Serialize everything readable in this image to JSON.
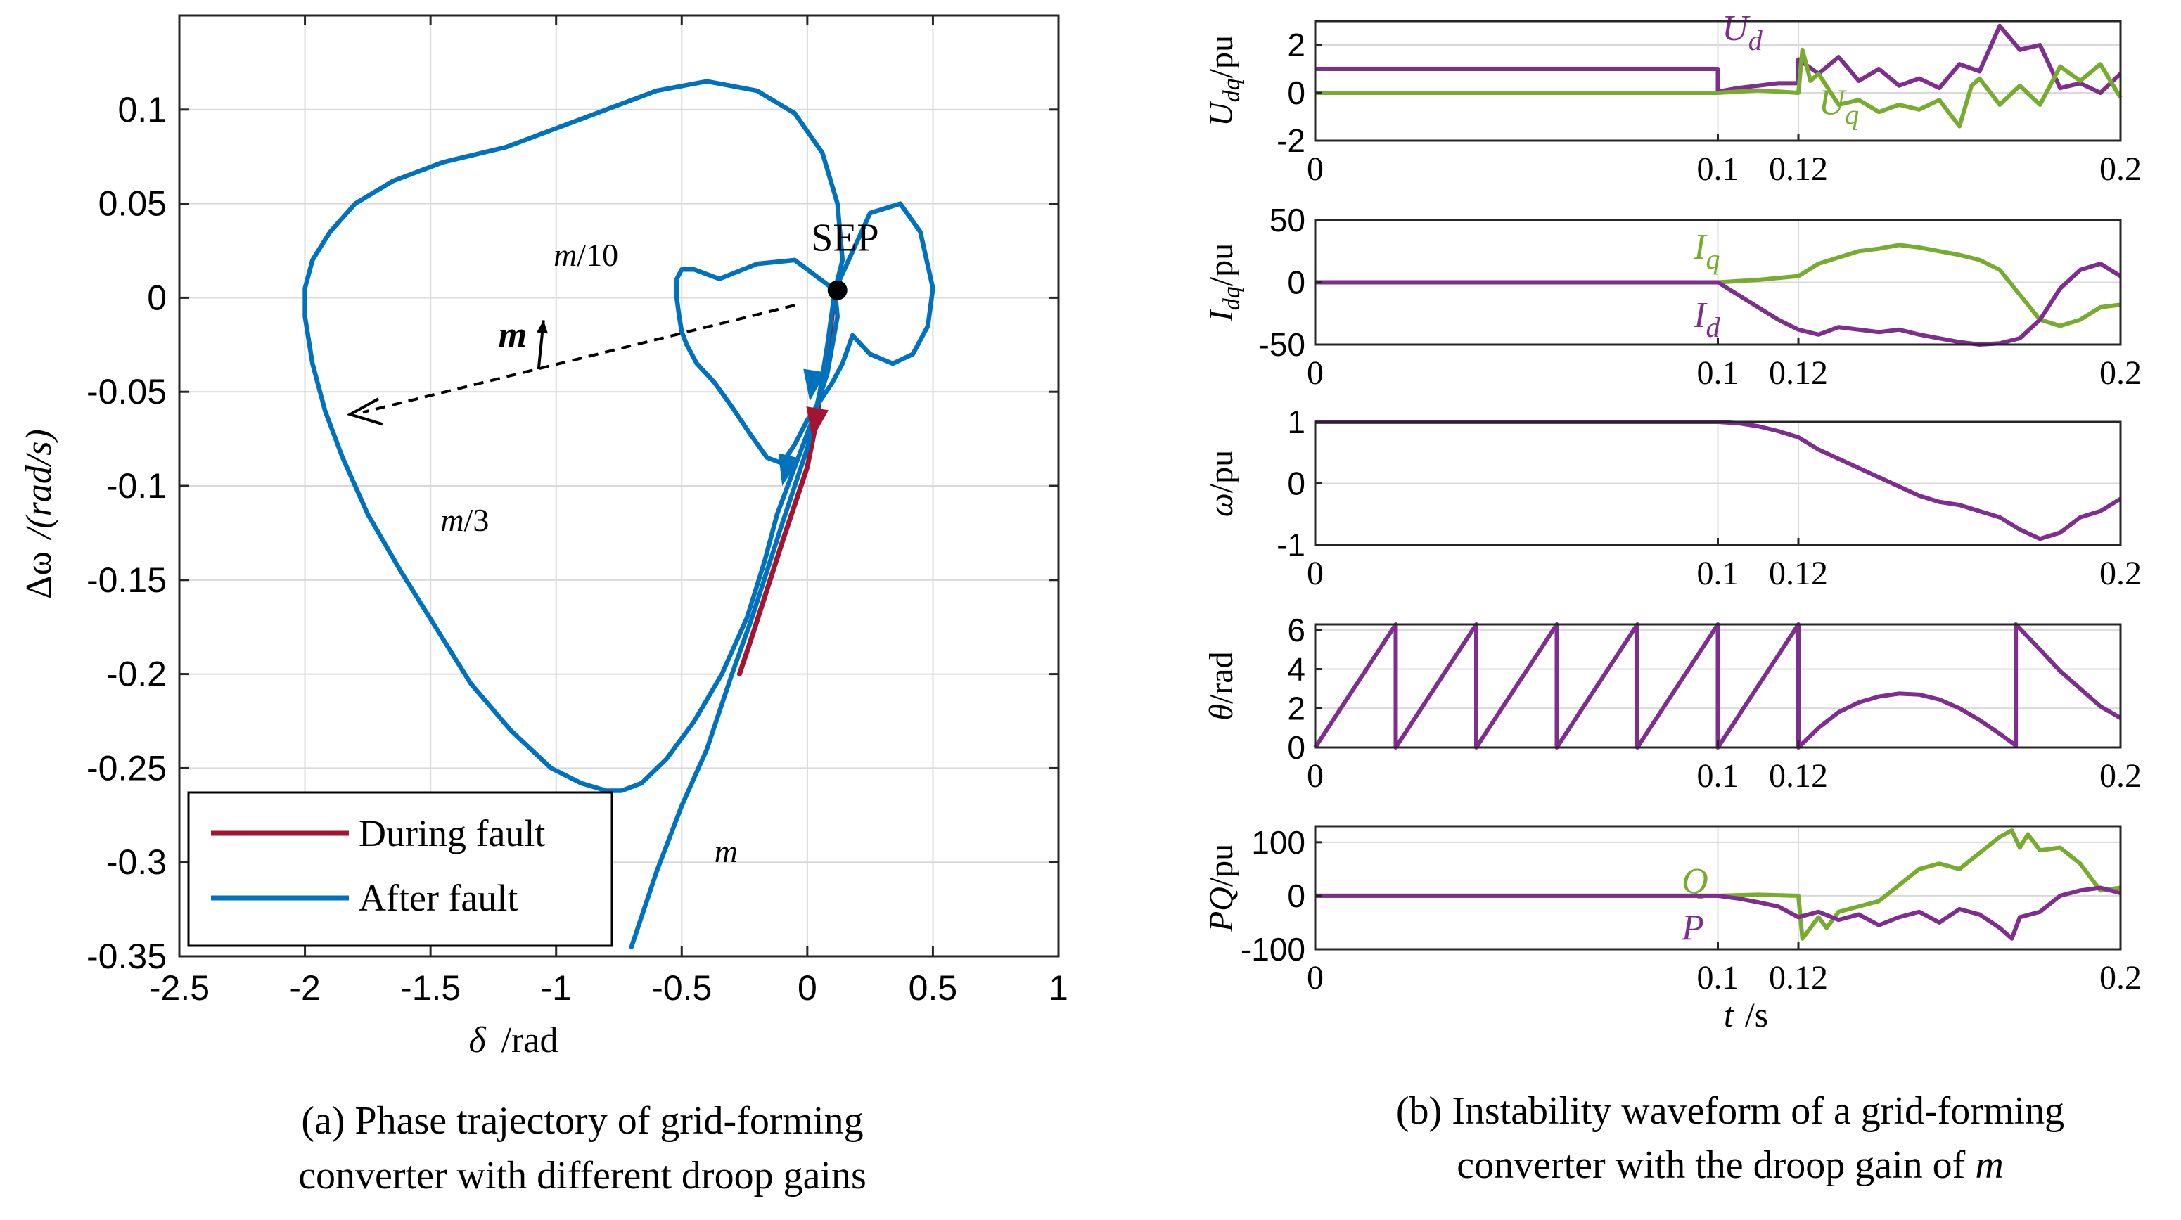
{
  "chart_data": [
    {
      "id": "phase",
      "type": "line",
      "xlabel_sym": "δ",
      "xlabel_unit": "/rad",
      "ylabel_sym": "Δω",
      "ylabel_unit": "/(rad/s)",
      "xlim": [
        -2.5,
        1
      ],
      "ylim": [
        -0.35,
        0.15
      ],
      "xticks": [
        -2.5,
        -2,
        -1.5,
        -1,
        -0.5,
        0,
        0.5,
        1
      ],
      "xtick_labels": [
        "-2.5",
        "-2",
        "-1.5",
        "-1",
        "-0.5",
        "0",
        "0.5",
        "1"
      ],
      "yticks": [
        -0.35,
        -0.3,
        -0.25,
        -0.2,
        -0.15,
        -0.1,
        -0.05,
        0,
        0.05,
        0.1
      ],
      "ytick_labels": [
        "-0.35",
        "-0.3",
        "-0.25",
        "-0.2",
        "-0.15",
        "-0.1",
        "-0.05",
        "0",
        "0.05",
        "0.1"
      ],
      "legend": [
        {
          "label": "During fault",
          "color": "#a2142f"
        },
        {
          "label": "After fault",
          "color": "#0072bd"
        }
      ],
      "legend_position": "bottom-left",
      "series": [
        {
          "name": "During fault",
          "color": "#a2142f",
          "x": [
            0.11,
            0.09,
            0.06,
            0.03,
            0.0,
            -0.05,
            -0.1,
            -0.16,
            -0.22,
            -0.27
          ],
          "y": [
            0.004,
            -0.02,
            -0.045,
            -0.07,
            -0.09,
            -0.11,
            -0.13,
            -0.155,
            -0.18,
            -0.2
          ]
        },
        {
          "name": "After fault (m)",
          "color": "#0072bd",
          "x": [
            0.11,
            0.08,
            0.05,
            0.0,
            -0.05,
            -0.1,
            -0.16,
            -0.22,
            -0.3,
            -0.4,
            -0.5,
            -0.6,
            -0.7
          ],
          "y": [
            0.004,
            -0.025,
            -0.05,
            -0.08,
            -0.1,
            -0.12,
            -0.145,
            -0.17,
            -0.2,
            -0.24,
            -0.27,
            -0.305,
            -0.345
          ]
        },
        {
          "name": "After fault (m/10)",
          "color": "#0072bd",
          "x": [
            0.11,
            0.25,
            0.37,
            0.45,
            0.5,
            0.48,
            0.42,
            0.34,
            0.25,
            0.18,
            0.14,
            0.1,
            0.05,
            0.0,
            -0.05,
            -0.1,
            -0.16,
            -0.23,
            -0.3,
            -0.37,
            -0.44,
            -0.48,
            -0.5,
            -0.51,
            -0.52,
            -0.52,
            -0.5,
            -0.45,
            -0.35,
            -0.2,
            -0.05,
            0.05,
            0.11,
            0.12,
            0.08,
            0.02,
            -0.05,
            -0.12
          ],
          "y": [
            0.004,
            0.045,
            0.05,
            0.035,
            0.005,
            -0.015,
            -0.03,
            -0.035,
            -0.03,
            -0.02,
            -0.035,
            -0.045,
            -0.055,
            -0.065,
            -0.078,
            -0.088,
            -0.085,
            -0.072,
            -0.058,
            -0.045,
            -0.035,
            -0.025,
            -0.018,
            -0.01,
            0.0,
            0.01,
            0.015,
            0.015,
            0.01,
            0.018,
            0.02,
            0.01,
            0.004,
            -0.01,
            -0.04,
            -0.065,
            -0.09,
            -0.115
          ]
        },
        {
          "name": "After fault (m/3)",
          "color": "#0072bd",
          "x": [
            0.11,
            0.14,
            0.12,
            0.06,
            -0.05,
            -0.2,
            -0.4,
            -0.6,
            -0.8,
            -1.0,
            -1.2,
            -1.45,
            -1.65,
            -1.8,
            -1.9,
            -1.97,
            -2.0,
            -2.0,
            -1.97,
            -1.92,
            -1.85,
            -1.75,
            -1.62,
            -1.48,
            -1.34,
            -1.18,
            -1.02,
            -0.9,
            -0.8,
            -0.74,
            -0.66,
            -0.56,
            -0.45,
            -0.34,
            -0.24,
            -0.17,
            -0.12
          ],
          "y": [
            0.004,
            0.02,
            0.05,
            0.077,
            0.098,
            0.11,
            0.115,
            0.11,
            0.1,
            0.09,
            0.08,
            0.072,
            0.062,
            0.05,
            0.035,
            0.02,
            0.005,
            -0.01,
            -0.035,
            -0.06,
            -0.085,
            -0.115,
            -0.145,
            -0.175,
            -0.205,
            -0.23,
            -0.25,
            -0.258,
            -0.262,
            -0.262,
            -0.258,
            -0.245,
            -0.225,
            -0.2,
            -0.17,
            -0.14,
            -0.115
          ]
        }
      ],
      "annotations": {
        "sep": "SEP",
        "m10": "m/10",
        "m3": "m/3",
        "m": "m",
        "m_arrow": "m",
        "sep_point": [
          0.12,
          0.004
        ],
        "arrow_start": [
          -0.05,
          -0.004
        ],
        "arrow_end": [
          -1.82,
          -0.062
        ]
      }
    },
    {
      "id": "udq",
      "type": "line",
      "ylabel_sym": "U",
      "ylabel_sub": "dq",
      "ylabel_unit": "/pu",
      "xlim": [
        0,
        0.2
      ],
      "ylim": [
        -2,
        3
      ],
      "xticks": [
        0,
        0.1,
        0.12,
        0.2
      ],
      "xtick_labels": [
        "0",
        "0.1",
        "0.12",
        "0.2"
      ],
      "yticks": [
        -2,
        0,
        2
      ],
      "ytick_labels": [
        "-2",
        "0",
        "2"
      ],
      "series": [
        {
          "name": "Ud",
          "label": "U",
          "sub": "d",
          "color": "#7e2f8e",
          "x": [
            0,
            0.1,
            0.1,
            0.105,
            0.11,
            0.115,
            0.12,
            0.12,
            0.125,
            0.13,
            0.135,
            0.14,
            0.145,
            0.15,
            0.155,
            0.16,
            0.165,
            0.17,
            0.175,
            0.18,
            0.185,
            0.19,
            0.195,
            0.2
          ],
          "y": [
            1,
            1,
            0.05,
            0.2,
            0.3,
            0.4,
            0.4,
            1.4,
            0.8,
            1.5,
            0.5,
            1.0,
            0.3,
            0.6,
            0.2,
            1.2,
            0.9,
            2.8,
            1.8,
            2.0,
            0.2,
            0.4,
            0.0,
            0.8
          ]
        },
        {
          "name": "Uq",
          "label": "U",
          "sub": "q",
          "color": "#77ac30",
          "x": [
            0,
            0.1,
            0.105,
            0.11,
            0.115,
            0.12,
            0.121,
            0.123,
            0.125,
            0.13,
            0.135,
            0.14,
            0.145,
            0.15,
            0.155,
            0.16,
            0.163,
            0.165,
            0.17,
            0.175,
            0.18,
            0.185,
            0.19,
            0.195,
            0.2
          ],
          "y": [
            0,
            0,
            0.05,
            0.1,
            0.05,
            0.0,
            1.8,
            0.5,
            0.8,
            -0.5,
            -0.3,
            -0.8,
            -0.5,
            -0.7,
            -0.3,
            -1.4,
            0.3,
            0.6,
            -0.5,
            0.3,
            -0.5,
            1.1,
            0.5,
            1.2,
            -0.2
          ]
        }
      ]
    },
    {
      "id": "idq",
      "type": "line",
      "ylabel_sym": "I",
      "ylabel_sub": "dq",
      "ylabel_unit": "/pu",
      "xlim": [
        0,
        0.2
      ],
      "ylim": [
        -50,
        50
      ],
      "xticks": [
        0,
        0.1,
        0.12,
        0.2
      ],
      "xtick_labels": [
        "0",
        "0.1",
        "0.12",
        "0.2"
      ],
      "yticks": [
        -50,
        0,
        50
      ],
      "ytick_labels": [
        "-50",
        "0",
        "50"
      ],
      "series": [
        {
          "name": "Iq",
          "label": "I",
          "sub": "q",
          "color": "#77ac30",
          "x": [
            0,
            0.1,
            0.11,
            0.12,
            0.125,
            0.13,
            0.135,
            0.14,
            0.145,
            0.15,
            0.155,
            0.16,
            0.165,
            0.17,
            0.175,
            0.18,
            0.185,
            0.19,
            0.195,
            0.2
          ],
          "y": [
            0,
            0,
            2,
            5,
            15,
            20,
            25,
            27,
            30,
            28,
            25,
            22,
            18,
            10,
            -10,
            -30,
            -35,
            -30,
            -20,
            -18
          ]
        },
        {
          "name": "Id",
          "label": "I",
          "sub": "d",
          "color": "#7e2f8e",
          "x": [
            0,
            0.1,
            0.105,
            0.11,
            0.115,
            0.12,
            0.125,
            0.13,
            0.135,
            0.14,
            0.145,
            0.15,
            0.155,
            0.16,
            0.165,
            0.17,
            0.175,
            0.18,
            0.185,
            0.19,
            0.195,
            0.2
          ],
          "y": [
            0,
            0,
            -10,
            -20,
            -30,
            -38,
            -42,
            -36,
            -38,
            -40,
            -38,
            -42,
            -45,
            -48,
            -50,
            -49,
            -45,
            -30,
            -5,
            10,
            15,
            5
          ]
        }
      ]
    },
    {
      "id": "omega",
      "type": "line",
      "ylabel_sym": "ω",
      "ylabel_unit": "/pu",
      "xlim": [
        0,
        0.2
      ],
      "ylim": [
        -1,
        1
      ],
      "xticks": [
        0,
        0.1,
        0.12,
        0.2
      ],
      "xtick_labels": [
        "0",
        "0.1",
        "0.12",
        "0.2"
      ],
      "yticks": [
        -1,
        0,
        1
      ],
      "ytick_labels": [
        "-1",
        "0",
        "1"
      ],
      "series": [
        {
          "name": "omega",
          "color": "#7e2f8e",
          "x": [
            0,
            0.1,
            0.105,
            0.11,
            0.115,
            0.12,
            0.125,
            0.13,
            0.135,
            0.14,
            0.145,
            0.15,
            0.155,
            0.16,
            0.165,
            0.17,
            0.175,
            0.18,
            0.185,
            0.19,
            0.195,
            0.2
          ],
          "y": [
            1,
            1,
            0.98,
            0.93,
            0.85,
            0.75,
            0.55,
            0.4,
            0.25,
            0.1,
            -0.05,
            -0.2,
            -0.3,
            -0.35,
            -0.45,
            -0.55,
            -0.75,
            -0.9,
            -0.8,
            -0.55,
            -0.45,
            -0.25
          ]
        }
      ]
    },
    {
      "id": "theta",
      "type": "line",
      "ylabel_sym": "θ",
      "ylabel_unit": "/rad",
      "xlim": [
        0,
        0.2
      ],
      "ylim": [
        0,
        6.28
      ],
      "xticks": [
        0,
        0.1,
        0.12,
        0.2
      ],
      "xtick_labels": [
        "0",
        "0.1",
        "0.12",
        "0.2"
      ],
      "yticks": [
        0,
        2,
        4,
        6
      ],
      "ytick_labels": [
        "0",
        "2",
        "4",
        "6"
      ],
      "series": [
        {
          "name": "theta",
          "color": "#7e2f8e",
          "x": [
            0,
            0.02,
            0.02,
            0.04,
            0.04,
            0.06,
            0.06,
            0.08,
            0.08,
            0.1,
            0.1,
            0.12,
            0.12,
            0.125,
            0.13,
            0.135,
            0.14,
            0.145,
            0.15,
            0.155,
            0.16,
            0.165,
            0.17,
            0.174,
            0.174,
            0.18,
            0.185,
            0.19,
            0.195,
            0.2
          ],
          "y": [
            0,
            6.28,
            0,
            6.28,
            0,
            6.28,
            0,
            6.28,
            0,
            6.28,
            0,
            6.28,
            0,
            1.0,
            1.8,
            2.3,
            2.6,
            2.75,
            2.7,
            2.45,
            2.0,
            1.4,
            0.7,
            0.1,
            6.28,
            5.0,
            3.9,
            3.0,
            2.1,
            1.5
          ]
        }
      ]
    },
    {
      "id": "pq",
      "type": "line",
      "ylabel_sym": "PQ",
      "ylabel_unit": "/pu",
      "xlabel_sym": "t",
      "xlabel_unit": "/s",
      "xlim": [
        0,
        0.2
      ],
      "ylim": [
        -100,
        130
      ],
      "xticks": [
        0,
        0.1,
        0.12,
        0.2
      ],
      "xtick_labels": [
        "0",
        "0.1",
        "0.12",
        "0.2"
      ],
      "yticks": [
        -100,
        0,
        100
      ],
      "ytick_labels": [
        "-100",
        "0",
        "100"
      ],
      "series": [
        {
          "name": "Q",
          "label": "Q",
          "color": "#77ac30",
          "x": [
            0,
            0.1,
            0.11,
            0.12,
            0.12,
            0.121,
            0.123,
            0.125,
            0.127,
            0.13,
            0.135,
            0.14,
            0.145,
            0.15,
            0.155,
            0.16,
            0.165,
            0.17,
            0.173,
            0.175,
            0.177,
            0.18,
            0.185,
            0.19,
            0.195,
            0.2
          ],
          "y": [
            0,
            0,
            2,
            0,
            0,
            -80,
            -60,
            -40,
            -60,
            -30,
            -20,
            -10,
            20,
            50,
            60,
            50,
            80,
            110,
            122,
            90,
            115,
            85,
            90,
            60,
            10,
            15
          ]
        },
        {
          "name": "P",
          "label": "P",
          "color": "#7e2f8e",
          "x": [
            0,
            0.1,
            0.105,
            0.11,
            0.115,
            0.12,
            0.125,
            0.13,
            0.135,
            0.14,
            0.145,
            0.15,
            0.155,
            0.16,
            0.165,
            0.17,
            0.173,
            0.175,
            0.18,
            0.185,
            0.19,
            0.195,
            0.2
          ],
          "y": [
            0,
            0,
            -5,
            -12,
            -20,
            -40,
            -30,
            -45,
            -35,
            -55,
            -40,
            -30,
            -50,
            -25,
            -35,
            -60,
            -80,
            -40,
            -30,
            0,
            10,
            15,
            5
          ]
        }
      ]
    }
  ],
  "captions": {
    "a_line1": "(a) Phase trajectory of grid-forming",
    "a_line2": "converter with different droop gains",
    "b_line1": "(b) Instability waveform of a grid-forming",
    "b_line2_prefix": "converter with the droop gain of ",
    "b_line2_var": "m"
  }
}
